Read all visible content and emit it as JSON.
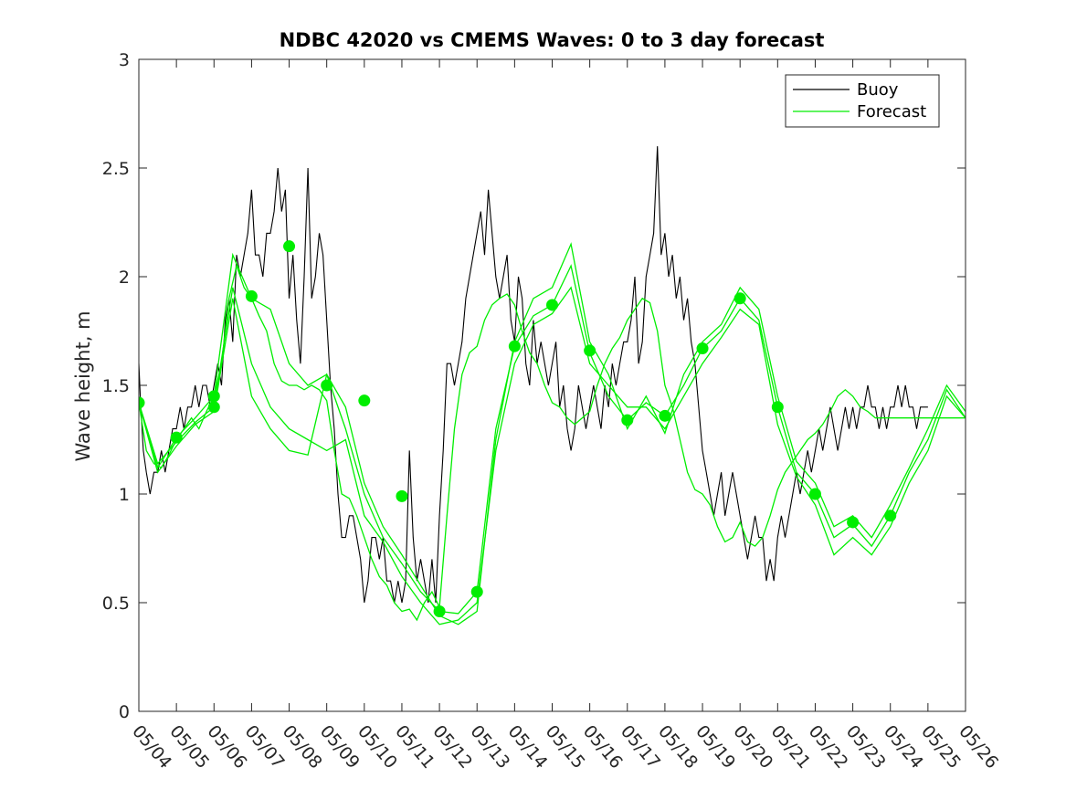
{
  "chart_data": {
    "type": "line",
    "title": "NDBC 42020 vs CMEMS Waves: 0 to 3 day forecast",
    "xlabel": "",
    "ylabel": "Wave height, m",
    "xlim": [
      0,
      22
    ],
    "ylim": [
      0,
      3
    ],
    "yticks": [
      0,
      0.5,
      1,
      1.5,
      2,
      2.5,
      3
    ],
    "ytick_labels": [
      "0",
      "0.5",
      "1",
      "1.5",
      "2",
      "2.5",
      "3"
    ],
    "xtick_labels": [
      "05/04",
      "05/05",
      "05/06",
      "05/07",
      "05/08",
      "05/09",
      "05/10",
      "05/11",
      "05/12",
      "05/13",
      "05/14",
      "05/15",
      "05/16",
      "05/17",
      "05/18",
      "05/19",
      "05/20",
      "05/21",
      "05/22",
      "05/23",
      "05/24",
      "05/25",
      "05/26"
    ],
    "grid": false,
    "legend_position": "top-right",
    "colors": {
      "buoy": "#000000",
      "forecast": "#00ee00"
    },
    "series": [
      {
        "name": "Buoy",
        "x": [
          0,
          0.05,
          0.12,
          0.2,
          0.3,
          0.4,
          0.5,
          0.6,
          0.7,
          0.8,
          0.9,
          1.0,
          1.1,
          1.2,
          1.3,
          1.4,
          1.5,
          1.6,
          1.7,
          1.8,
          1.9,
          2.0,
          2.1,
          2.2,
          2.3,
          2.4,
          2.5,
          2.6,
          2.7,
          2.8,
          2.9,
          3.0,
          3.1,
          3.2,
          3.3,
          3.4,
          3.5,
          3.6,
          3.7,
          3.8,
          3.9,
          4.0,
          4.1,
          4.2,
          4.3,
          4.4,
          4.5,
          4.6,
          4.7,
          4.8,
          4.9,
          5.0,
          5.1,
          5.2,
          5.3,
          5.4,
          5.5,
          5.6,
          5.7,
          5.8,
          5.9,
          6.0,
          6.1,
          6.2,
          6.3,
          6.4,
          6.5,
          6.6,
          6.7,
          6.8,
          6.9,
          7.0,
          7.1,
          7.2,
          7.3,
          7.4,
          7.5,
          7.6,
          7.7,
          7.8,
          7.9,
          8.0,
          8.1,
          8.2,
          8.3,
          8.4,
          8.5,
          8.6,
          8.7,
          8.8,
          8.9,
          9.0,
          9.1,
          9.2,
          9.3,
          9.4,
          9.5,
          9.6,
          9.7,
          9.8,
          9.9,
          10.0,
          10.1,
          10.2,
          10.3,
          10.4,
          10.5,
          10.6,
          10.7,
          10.8,
          10.9,
          11.0,
          11.1,
          11.2,
          11.3,
          11.4,
          11.5,
          11.6,
          11.7,
          11.8,
          11.9,
          12.0,
          12.1,
          12.2,
          12.3,
          12.4,
          12.5,
          12.6,
          12.7,
          12.8,
          12.9,
          13.0,
          13.1,
          13.2,
          13.3,
          13.4,
          13.5,
          13.6,
          13.7,
          13.8,
          13.9,
          14.0,
          14.1,
          14.2,
          14.3,
          14.4,
          14.5,
          14.6,
          14.7,
          14.8,
          14.9,
          15.0,
          15.1,
          15.2,
          15.3,
          15.4,
          15.5,
          15.6,
          15.7,
          15.8,
          15.9,
          16.0,
          16.1,
          16.2,
          16.3,
          16.4,
          16.5,
          16.6,
          16.7,
          16.8,
          16.9,
          17.0,
          17.1,
          17.2,
          17.3,
          17.4,
          17.5,
          17.6,
          17.7,
          17.8,
          17.9,
          18.0,
          18.1,
          18.2,
          18.3,
          18.4,
          18.5,
          18.6,
          18.7,
          18.8,
          18.9,
          19.0,
          19.1,
          19.2,
          19.3,
          19.4,
          19.5,
          19.6,
          19.7,
          19.8,
          19.9,
          20.0,
          20.1,
          20.2,
          20.3,
          20.4,
          20.5,
          20.6,
          20.7,
          20.8,
          20.9,
          21.0
        ],
        "values": [
          1.6,
          1.4,
          1.2,
          1.1,
          1.0,
          1.1,
          1.1,
          1.2,
          1.1,
          1.2,
          1.3,
          1.3,
          1.4,
          1.3,
          1.4,
          1.4,
          1.5,
          1.4,
          1.5,
          1.5,
          1.4,
          1.5,
          1.6,
          1.5,
          1.8,
          1.9,
          1.7,
          2.1,
          2.0,
          2.1,
          2.2,
          2.4,
          2.1,
          2.1,
          2.0,
          2.2,
          2.2,
          2.3,
          2.5,
          2.3,
          2.4,
          1.9,
          2.1,
          1.8,
          1.6,
          2.0,
          2.5,
          1.9,
          2.0,
          2.2,
          2.1,
          1.8,
          1.5,
          1.3,
          1.0,
          0.8,
          0.8,
          0.9,
          0.9,
          0.8,
          0.7,
          0.5,
          0.6,
          0.8,
          0.8,
          0.7,
          0.8,
          0.6,
          0.6,
          0.5,
          0.6,
          0.5,
          0.6,
          1.2,
          0.8,
          0.6,
          0.7,
          0.6,
          0.5,
          0.7,
          0.5,
          0.9,
          1.2,
          1.6,
          1.6,
          1.5,
          1.6,
          1.7,
          1.9,
          2.0,
          2.1,
          2.2,
          2.3,
          2.1,
          2.4,
          2.2,
          2.0,
          1.9,
          2.0,
          2.1,
          1.8,
          1.7,
          2.0,
          1.9,
          1.6,
          1.5,
          1.8,
          1.6,
          1.7,
          1.6,
          1.5,
          1.6,
          1.7,
          1.4,
          1.5,
          1.3,
          1.2,
          1.3,
          1.5,
          1.4,
          1.3,
          1.4,
          1.5,
          1.4,
          1.3,
          1.5,
          1.4,
          1.6,
          1.5,
          1.6,
          1.7,
          1.7,
          1.8,
          2.0,
          1.6,
          1.7,
          2.0,
          2.1,
          2.2,
          2.6,
          2.1,
          2.2,
          2.0,
          2.1,
          1.9,
          2.0,
          1.8,
          1.9,
          1.7,
          1.6,
          1.4,
          1.2,
          1.1,
          1.0,
          0.9,
          1.0,
          1.1,
          0.9,
          1.0,
          1.1,
          1.0,
          0.9,
          0.8,
          0.7,
          0.8,
          0.9,
          0.8,
          0.8,
          0.6,
          0.7,
          0.6,
          0.8,
          0.9,
          0.8,
          0.9,
          1.0,
          1.1,
          1.0,
          1.1,
          1.2,
          1.1,
          1.2,
          1.3,
          1.2,
          1.3,
          1.4,
          1.3,
          1.2,
          1.3,
          1.4,
          1.3,
          1.4,
          1.3,
          1.4,
          1.4,
          1.5,
          1.4,
          1.4,
          1.3,
          1.4,
          1.3,
          1.4,
          1.4,
          1.5,
          1.4,
          1.5,
          1.4,
          1.4,
          1.3,
          1.4,
          1.4,
          1.4
        ]
      },
      {
        "name": "Forecast",
        "x": [
          0,
          0.2,
          0.4,
          0.6,
          0.8,
          1.0,
          1.2,
          1.4,
          1.6,
          1.8,
          2.0,
          2.2,
          2.4,
          2.6,
          2.8,
          3.0,
          3.2,
          3.4,
          3.6,
          3.8,
          4.0,
          4.2,
          4.4,
          4.6,
          4.8,
          5.0,
          5.2,
          5.4,
          5.6,
          5.8,
          6.0,
          6.2,
          6.4,
          6.6,
          6.8,
          7.0,
          7.2,
          7.4,
          7.6,
          7.8,
          8.0,
          8.2,
          8.4,
          8.6,
          8.8,
          9.0,
          9.2,
          9.4,
          9.6,
          9.8,
          10.0,
          10.2,
          10.4,
          10.6,
          10.8,
          11.0,
          11.2,
          11.4,
          11.6,
          11.8,
          12.0,
          12.2,
          12.4,
          12.6,
          12.8,
          13.0,
          13.2,
          13.4,
          13.6,
          13.8,
          14.0,
          14.2,
          14.4,
          14.6,
          14.8,
          15.0,
          15.2,
          15.4,
          15.6,
          15.8,
          16.0,
          16.2,
          16.4,
          16.6,
          16.8,
          17.0,
          17.2,
          17.4,
          17.6,
          17.8,
          18.0,
          18.2,
          18.4,
          18.6,
          18.8,
          19.0,
          19.2,
          19.4,
          19.6,
          19.8,
          20.0,
          20.2,
          20.4,
          20.6,
          20.8,
          21.0,
          21.2,
          21.4,
          21.6,
          21.8,
          22.0
        ],
        "values": [
          1.42,
          1.2,
          1.14,
          1.12,
          1.18,
          1.25,
          1.3,
          1.35,
          1.3,
          1.38,
          1.45,
          1.6,
          1.9,
          2.05,
          1.95,
          1.9,
          1.82,
          1.75,
          1.6,
          1.52,
          1.5,
          1.5,
          1.48,
          1.5,
          1.48,
          1.43,
          1.2,
          1.0,
          0.98,
          0.9,
          0.8,
          0.7,
          0.62,
          0.58,
          0.5,
          0.46,
          0.47,
          0.42,
          0.5,
          0.55,
          0.48,
          0.9,
          1.3,
          1.55,
          1.65,
          1.68,
          1.8,
          1.87,
          1.9,
          1.92,
          1.87,
          1.75,
          1.65,
          1.6,
          1.5,
          1.42,
          1.4,
          1.35,
          1.32,
          1.35,
          1.38,
          1.5,
          1.6,
          1.67,
          1.72,
          1.8,
          1.85,
          1.9,
          1.88,
          1.75,
          1.5,
          1.4,
          1.25,
          1.1,
          1.02,
          1.0,
          0.95,
          0.85,
          0.78,
          0.8,
          0.87,
          0.78,
          0.76,
          0.8,
          0.9,
          1.02,
          1.1,
          1.15,
          1.2,
          1.25,
          1.28,
          1.32,
          1.38,
          1.45,
          1.48,
          1.45,
          1.4,
          1.38,
          1.35,
          1.35,
          1.35,
          1.35,
          1.35,
          1.35,
          1.35,
          1.35,
          1.35,
          1.35,
          1.35,
          1.35,
          1.35
        ],
        "members": [
          {
            "x": [
              0,
              0.5,
              1,
              1.5,
              2,
              2.5,
              3,
              3.5,
              4,
              4.5,
              5,
              5.5,
              6,
              6.5,
              7,
              7.5,
              8,
              8.5,
              9,
              9.5,
              10,
              10.5,
              11,
              11.5,
              12,
              12.5,
              13,
              13.5,
              14,
              14.5,
              15,
              15.5,
              16,
              16.5,
              17,
              17.5,
              18,
              18.5,
              19,
              19.5,
              20,
              20.5,
              21,
              21.5,
              22
            ],
            "values": [
              1.42,
              1.12,
              1.26,
              1.35,
              1.45,
              2.1,
              1.9,
              1.85,
              1.6,
              1.5,
              1.55,
              1.3,
              1.0,
              0.8,
              0.68,
              0.55,
              0.46,
              0.45,
              0.55,
              1.3,
              1.68,
              1.82,
              1.87,
              2.05,
              1.65,
              1.45,
              1.34,
              1.42,
              1.36,
              1.5,
              1.67,
              1.75,
              1.9,
              1.8,
              1.4,
              1.1,
              1.0,
              0.8,
              0.86,
              0.76,
              0.9,
              1.1,
              1.25,
              1.48,
              1.35
            ]
          },
          {
            "x": [
              0,
              0.5,
              1,
              1.5,
              2,
              2.5,
              3,
              3.5,
              4,
              4.5,
              5,
              5.5,
              6,
              6.5,
              7,
              7.5,
              8,
              8.5,
              9,
              9.5,
              10,
              10.5,
              11,
              11.5,
              12,
              12.5,
              13,
              13.5,
              14,
              14.5,
              15,
              15.5,
              16,
              16.5,
              17,
              17.5,
              18,
              18.5,
              19,
              19.5,
              20,
              20.5,
              21,
              21.5,
              22
            ],
            "values": [
              1.42,
              1.14,
              1.24,
              1.33,
              1.4,
              1.95,
              1.6,
              1.4,
              1.3,
              1.25,
              1.2,
              1.25,
              0.9,
              0.78,
              0.62,
              0.5,
              0.4,
              0.42,
              0.5,
              1.2,
              1.6,
              1.78,
              1.83,
              1.95,
              1.6,
              1.5,
              1.4,
              1.4,
              1.3,
              1.45,
              1.6,
              1.72,
              1.85,
              1.78,
              1.32,
              1.08,
              0.95,
              0.72,
              0.8,
              0.72,
              0.85,
              1.05,
              1.2,
              1.45,
              1.35
            ]
          },
          {
            "x": [
              0,
              0.5,
              1,
              1.5,
              2,
              2.5,
              3,
              3.5,
              4,
              4.5,
              5,
              5.5,
              6,
              6.5,
              7,
              7.5,
              8,
              8.5,
              9,
              9.5,
              10,
              10.5,
              11,
              11.5,
              12,
              12.5,
              13,
              13.5,
              14,
              14.5,
              15,
              15.5,
              16,
              16.5,
              17,
              17.5,
              18,
              18.5,
              19,
              19.5,
              20,
              20.5,
              21,
              21.5,
              22
            ],
            "values": [
              1.42,
              1.1,
              1.22,
              1.32,
              1.38,
              1.9,
              1.45,
              1.3,
              1.2,
              1.18,
              1.55,
              1.4,
              1.05,
              0.85,
              0.72,
              0.58,
              0.44,
              0.4,
              0.46,
              1.25,
              1.7,
              1.9,
              1.95,
              2.15,
              1.7,
              1.55,
              1.3,
              1.45,
              1.28,
              1.55,
              1.7,
              1.78,
              1.95,
              1.85,
              1.45,
              1.15,
              1.05,
              0.85,
              0.9,
              0.8,
              0.95,
              1.12,
              1.3,
              1.5,
              1.38
            ]
          }
        ]
      }
    ],
    "markers": {
      "x": [
        0,
        1,
        2,
        2,
        3,
        4,
        5,
        6,
        7,
        8,
        9,
        10,
        11,
        12,
        13,
        14,
        15,
        16,
        17,
        18,
        19,
        20
      ],
      "values": [
        1.42,
        1.26,
        1.45,
        1.4,
        1.91,
        2.14,
        1.5,
        1.43,
        0.99,
        0.46,
        0.55,
        1.68,
        1.87,
        1.66,
        1.34,
        1.36,
        1.67,
        1.9,
        1.4,
        1.0,
        0.87,
        0.9
      ]
    }
  },
  "legend": {
    "entries": [
      {
        "label": "Buoy",
        "color": "#000000"
      },
      {
        "label": "Forecast",
        "color": "#00ee00"
      }
    ]
  }
}
